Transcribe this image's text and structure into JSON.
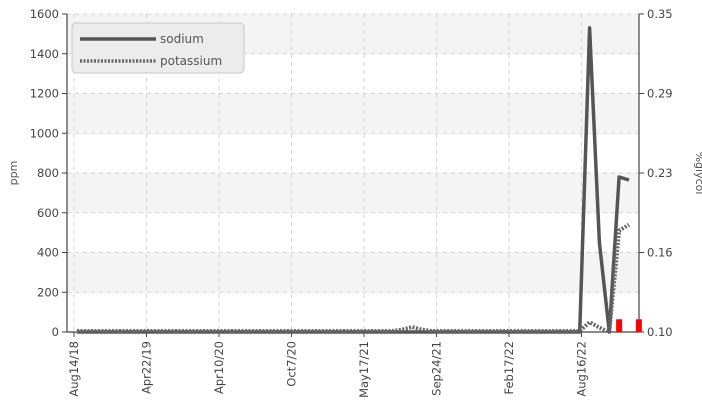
{
  "chart_data": {
    "type": "line",
    "xlabel": "",
    "ylabel": "ppm",
    "y2label": "%glycol",
    "ylim": [
      0,
      1600
    ],
    "y2lim": [
      0.1,
      0.35
    ],
    "yticks": [
      "0",
      "200",
      "400",
      "600",
      "800",
      "1000",
      "1200",
      "1400",
      "1600"
    ],
    "y2ticks": [
      "0.10",
      "0.16",
      "0.23",
      "0.29",
      "0.35"
    ],
    "xticks": [
      "Aug14/18",
      "Apr22/19",
      "Apr10/20",
      "Oct7/20",
      "May17/21",
      "Sep24/21",
      "Feb17/22",
      "Aug16/22"
    ],
    "grid": true,
    "legend_position": "top-left",
    "series": [
      {
        "name": "sodium",
        "axis": "left",
        "style": "solid",
        "color": "#555555",
        "values": [
          0,
          0,
          0,
          0,
          0,
          0,
          0,
          0,
          0,
          0,
          0,
          0,
          0,
          0,
          0,
          0,
          0,
          0,
          0,
          0,
          0,
          0,
          0,
          0,
          0,
          0,
          0,
          0,
          0,
          0,
          0,
          0,
          0,
          0,
          0,
          0,
          0,
          0,
          0,
          0,
          0,
          0,
          0,
          0,
          0,
          0,
          0,
          0,
          0,
          0,
          0,
          0,
          1530,
          450,
          0,
          780,
          765
        ]
      },
      {
        "name": "potassium",
        "axis": "left",
        "style": "dotted",
        "color": "#666666",
        "values": [
          5,
          5,
          5,
          5,
          5,
          5,
          5,
          5,
          5,
          5,
          5,
          5,
          5,
          5,
          5,
          5,
          5,
          5,
          5,
          5,
          5,
          5,
          5,
          5,
          5,
          5,
          5,
          5,
          5,
          5,
          5,
          5,
          5,
          12,
          25,
          12,
          5,
          5,
          5,
          5,
          5,
          5,
          5,
          5,
          5,
          5,
          5,
          5,
          5,
          5,
          5,
          5,
          50,
          22,
          0,
          510,
          540
        ]
      },
      {
        "name": "glycol",
        "axis": "right",
        "type": "bar",
        "color": "#ff0000",
        "points": [
          {
            "index": 55,
            "value": 0.11
          },
          {
            "index": 57,
            "value": 0.11
          }
        ]
      }
    ]
  }
}
